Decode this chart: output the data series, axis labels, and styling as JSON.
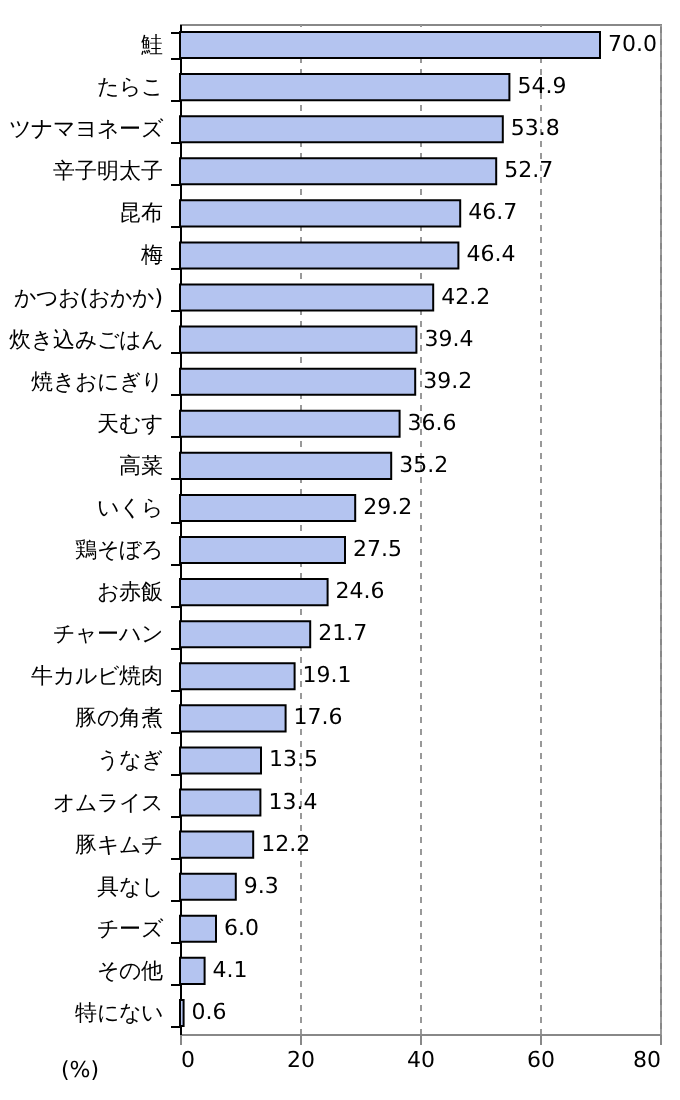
{
  "chart_data": {
    "type": "bar",
    "orientation": "horizontal",
    "xlabel": "(%)",
    "categories": [
      "鮭",
      "たらこ",
      "ツナマヨネーズ",
      "辛子明太子",
      "昆布",
      "梅",
      "かつお(おかか)",
      "炊き込みごはん",
      "焼きおにぎり",
      "天むす",
      "高菜",
      "いくら",
      "鶏そぼろ",
      "お赤飯",
      "チャーハン",
      "牛カルビ焼肉",
      "豚の角煮",
      "うなぎ",
      "オムライス",
      "豚キムチ",
      "具なし",
      "チーズ",
      "その他",
      "特にない"
    ],
    "values": [
      70.0,
      54.9,
      53.8,
      52.7,
      46.7,
      46.4,
      42.2,
      39.4,
      39.2,
      36.6,
      35.2,
      29.2,
      27.5,
      24.6,
      21.7,
      19.1,
      17.6,
      13.5,
      13.4,
      12.2,
      9.3,
      6.0,
      4.1,
      0.6
    ],
    "value_labels": [
      "70.0",
      "54.9",
      "53.8",
      "52.7",
      "46.7",
      "46.4",
      "42.2",
      "39.4",
      "39.2",
      "36.6",
      "35.2",
      "29.2",
      "27.5",
      "24.6",
      "21.7",
      "19.1",
      "17.6",
      "13.5",
      "13.4",
      "12.2",
      "9.3",
      "6.0",
      "4.1",
      "0.6"
    ],
    "color": "#b4c4f0",
    "xlim": [
      0,
      80
    ],
    "xticks": [
      0,
      20,
      40,
      60,
      80
    ],
    "grid": "x"
  }
}
